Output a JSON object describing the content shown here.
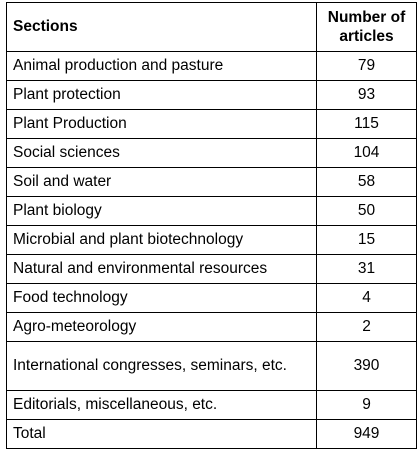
{
  "table": {
    "columns": [
      "Sections",
      "Number of articles"
    ],
    "rows": [
      [
        "Animal production and pasture",
        79
      ],
      [
        "Plant protection",
        93
      ],
      [
        "Plant Production",
        115
      ],
      [
        "Social sciences",
        104
      ],
      [
        "Soil and water",
        58
      ],
      [
        "Plant biology",
        50
      ],
      [
        "Microbial and plant biotechnology",
        15
      ],
      [
        "Natural and environmental resources",
        31
      ],
      [
        "Food technology",
        4
      ],
      [
        "Agro-meteorology",
        2
      ],
      [
        "International congresses, seminars, etc.",
        390
      ],
      [
        "Editorials, miscellaneous, etc.",
        9
      ],
      [
        "Total",
        949
      ]
    ]
  }
}
